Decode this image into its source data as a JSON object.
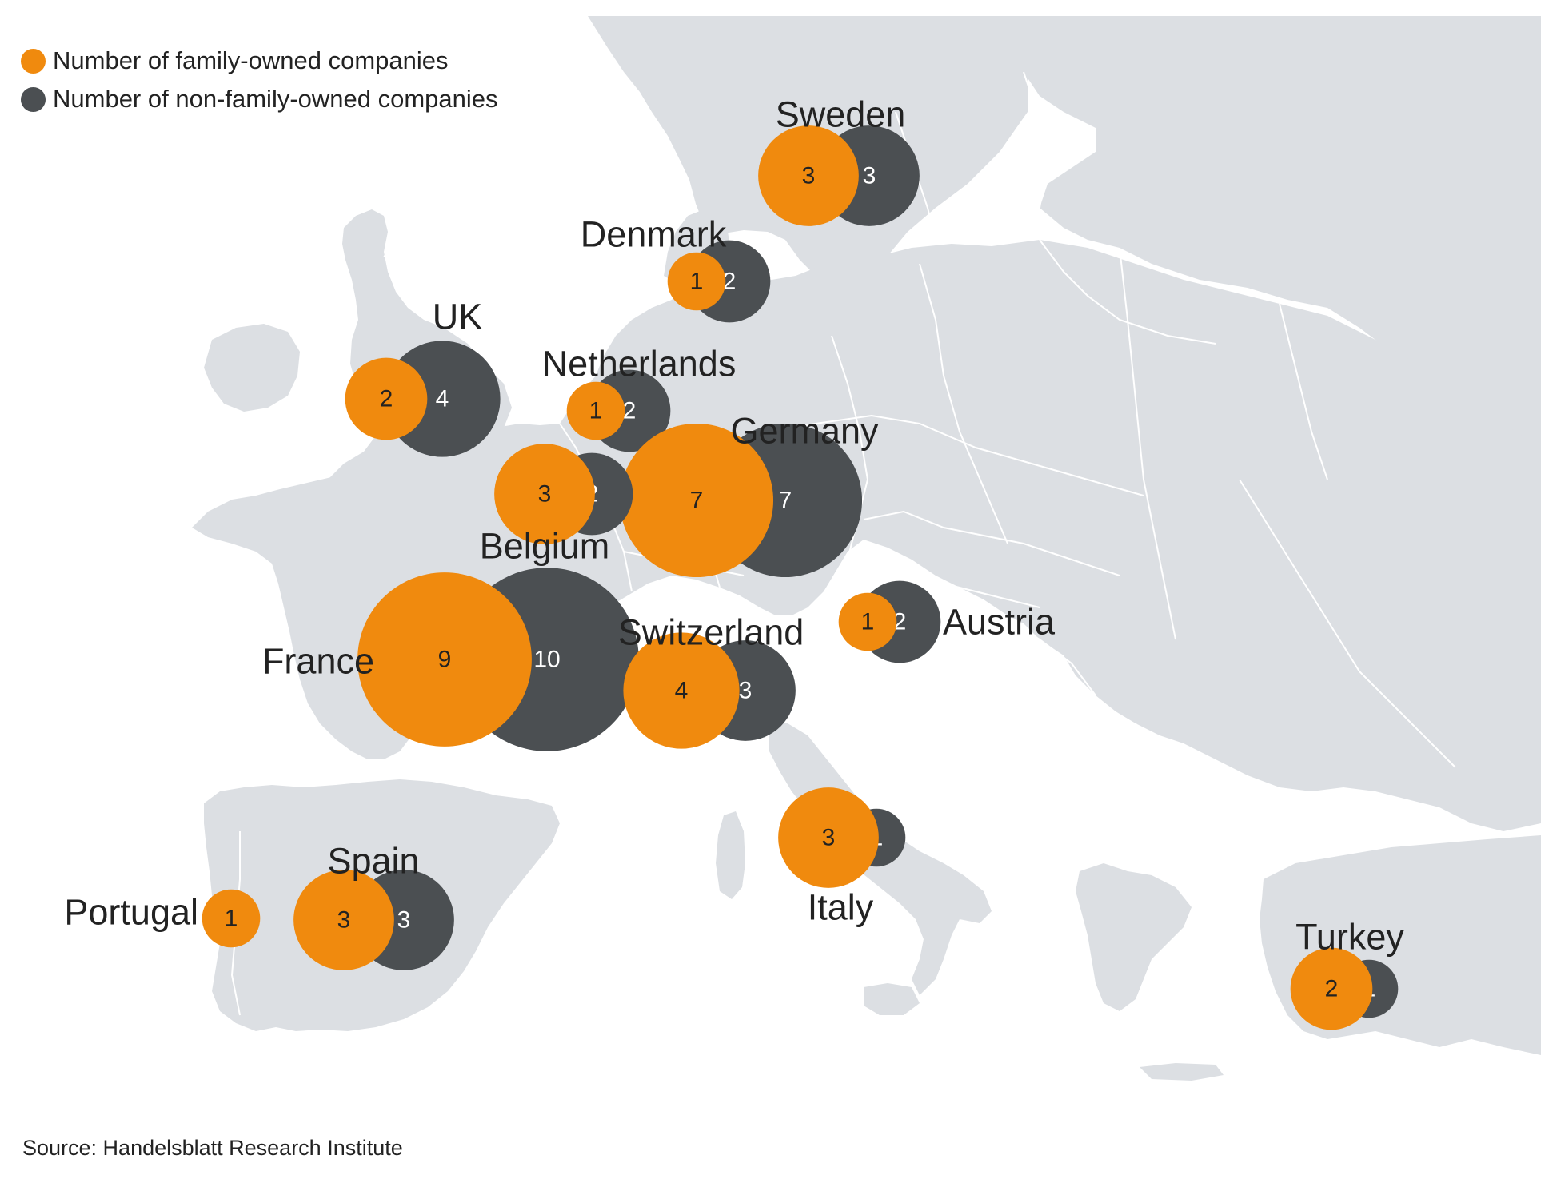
{
  "colors": {
    "family": "#f08a0e",
    "non_family": "#4b4f52",
    "land": "#dcdfe3",
    "border": "#ffffff",
    "label": "#222222"
  },
  "legend": {
    "family_label": "Number of family-owned companies",
    "non_family_label": "Number of non-family-owned companies"
  },
  "source": "Source: Handelsblatt Research Institute",
  "countries": [
    {
      "name": "Sweden",
      "family": 3,
      "non_family": 3
    },
    {
      "name": "Denmark",
      "family": 1,
      "non_family": 2
    },
    {
      "name": "UK",
      "family": 2,
      "non_family": 4
    },
    {
      "name": "Netherlands",
      "family": 1,
      "non_family": 2
    },
    {
      "name": "Germany",
      "family": 7,
      "non_family": 7
    },
    {
      "name": "Belgium",
      "family": 3,
      "non_family": 2
    },
    {
      "name": "France",
      "family": 9,
      "non_family": 10
    },
    {
      "name": "Switzerland",
      "family": 4,
      "non_family": 3
    },
    {
      "name": "Austria",
      "family": 1,
      "non_family": 2
    },
    {
      "name": "Italy",
      "family": 3,
      "non_family": 1
    },
    {
      "name": "Spain",
      "family": 3,
      "non_family": 3
    },
    {
      "name": "Portugal",
      "family": 1,
      "non_family": null
    },
    {
      "name": "Turkey",
      "family": 2,
      "non_family": 1
    }
  ]
}
